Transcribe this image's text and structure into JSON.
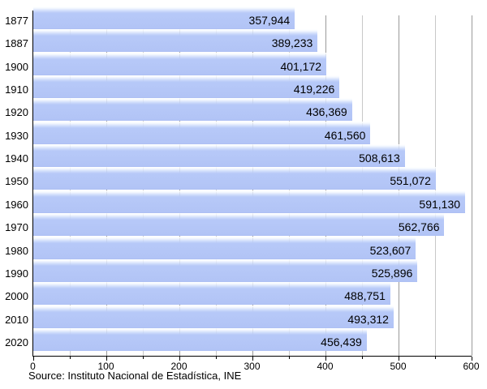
{
  "chart_data": {
    "type": "bar",
    "orientation": "horizontal",
    "title": "",
    "xlabel": "",
    "ylabel": "",
    "categories": [
      "1877",
      "1887",
      "1900",
      "1910",
      "1920",
      "1930",
      "1940",
      "1950",
      "1960",
      "1970",
      "1980",
      "1990",
      "2000",
      "2010",
      "2020"
    ],
    "values": [
      357944,
      389233,
      401172,
      419226,
      436369,
      461560,
      508613,
      551072,
      591130,
      562766,
      523607,
      525896,
      488751,
      493312,
      456439
    ],
    "value_labels": [
      "357,944",
      "389,233",
      "401,172",
      "419,226",
      "436,369",
      "461,560",
      "508,613",
      "551,072",
      "591,130",
      "562,766",
      "523,607",
      "525,896",
      "488,751",
      "493,312",
      "456,439"
    ],
    "xlim": [
      0,
      600000
    ],
    "x_major_tick_step": 100000,
    "x_minor_tick_step": 50000,
    "x_tick_labels": [
      "0",
      "100",
      "200",
      "300",
      "400",
      "500",
      "600"
    ],
    "grid": "vertical",
    "legend_position": "none",
    "bar_color": "#b2c4f6",
    "bar_gloss_color": "#ffffff",
    "major_grid_color": "#9a9a9a",
    "minor_grid_color": "#c8c8c8",
    "axis_color": "#000000",
    "text_color": "#000000"
  },
  "footer": {
    "source": "Source: Instituto Nacional de Estadística, INE"
  }
}
